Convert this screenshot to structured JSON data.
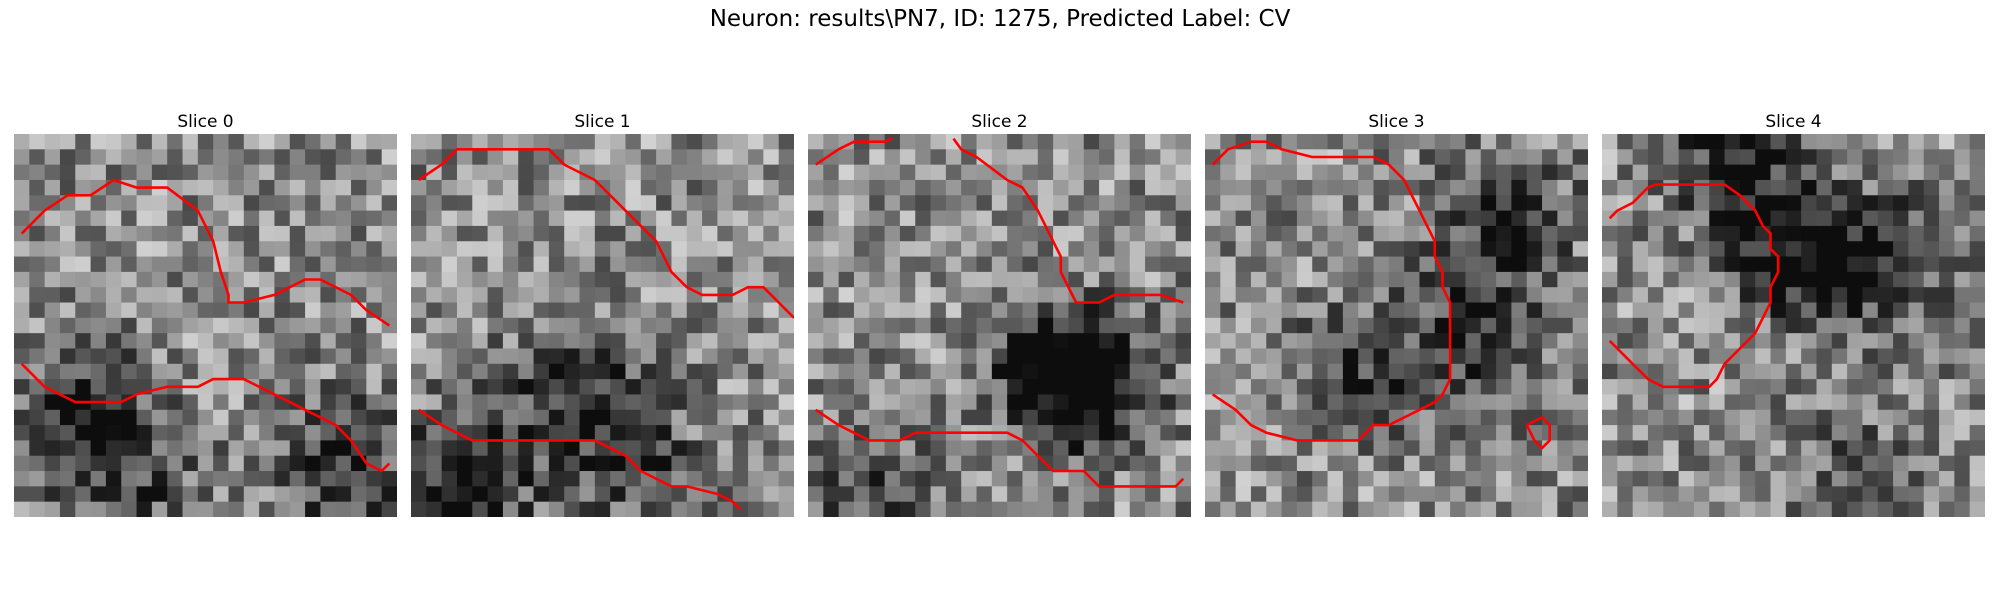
{
  "figure": {
    "title": "Neuron: results\\PN7, ID: 1275, Predicted Label: CV"
  },
  "grid_size": 25,
  "contour_color": "#ff0000",
  "slices": [
    {
      "title": "Slice 0",
      "darkness": [
        [
          4,
          18,
          -5
        ],
        [
          21,
          21,
          -4
        ],
        [
          8,
          23,
          -2
        ]
      ],
      "contours": [
        [
          [
            0.5,
            6.5
          ],
          [
            2,
            5
          ],
          [
            3.5,
            4
          ],
          [
            5,
            4
          ],
          [
            6.5,
            3
          ],
          [
            8,
            3.5
          ],
          [
            10,
            3.5
          ],
          [
            12,
            5
          ],
          [
            13,
            7
          ],
          [
            13.5,
            9
          ],
          [
            14,
            10.5
          ],
          [
            14,
            11
          ],
          [
            15,
            11
          ],
          [
            17,
            10.5
          ],
          [
            18,
            10
          ],
          [
            19,
            9.5
          ],
          [
            20,
            9.5
          ],
          [
            22,
            10.5
          ],
          [
            23,
            11.5
          ],
          [
            24.5,
            12.5
          ]
        ],
        [
          [
            0.5,
            15
          ],
          [
            2,
            16.5
          ],
          [
            4,
            17.5
          ],
          [
            7,
            17.5
          ],
          [
            8,
            17
          ],
          [
            10,
            16.5
          ],
          [
            12,
            16.5
          ],
          [
            13,
            16
          ],
          [
            15,
            16
          ],
          [
            17,
            17
          ],
          [
            19,
            18
          ],
          [
            20,
            18.5
          ],
          [
            21,
            19
          ],
          [
            22,
            20
          ],
          [
            23,
            21.5
          ],
          [
            24,
            22
          ],
          [
            24.5,
            21.5
          ]
        ]
      ]
    },
    {
      "title": "Slice 1",
      "darkness": [
        [
          10,
          16,
          -4
        ],
        [
          3,
          22,
          -5
        ],
        [
          14,
          21,
          -3
        ]
      ],
      "contours": [
        [
          [
            0.5,
            3
          ],
          [
            2,
            2
          ],
          [
            3,
            1
          ],
          [
            5,
            1
          ],
          [
            7,
            1
          ],
          [
            9,
            1
          ],
          [
            10,
            2
          ],
          [
            12,
            3
          ],
          [
            13,
            4
          ],
          [
            15,
            6
          ],
          [
            16,
            7
          ],
          [
            16.5,
            8
          ],
          [
            17,
            9
          ],
          [
            18,
            10
          ],
          [
            19,
            10.5
          ],
          [
            20,
            10.5
          ],
          [
            21,
            10.5
          ],
          [
            22,
            10
          ],
          [
            23,
            10
          ],
          [
            24,
            11
          ],
          [
            25,
            12
          ]
        ],
        [
          [
            0.5,
            18
          ],
          [
            2,
            19
          ],
          [
            4,
            20
          ],
          [
            6,
            20
          ],
          [
            8,
            20
          ],
          [
            10,
            20
          ],
          [
            12,
            20
          ],
          [
            13,
            20.5
          ],
          [
            14,
            21
          ],
          [
            15,
            22
          ],
          [
            17,
            23
          ],
          [
            18,
            23
          ],
          [
            20,
            23.5
          ],
          [
            21,
            24
          ],
          [
            21.5,
            24.5
          ]
        ]
      ]
    },
    {
      "title": "Slice 2",
      "darkness": [
        [
          16,
          15,
          -5
        ],
        [
          18,
          16,
          -4
        ],
        [
          4,
          23,
          -3
        ]
      ],
      "contours": [
        [
          [
            0.5,
            2
          ],
          [
            2,
            1
          ],
          [
            3,
            0.5
          ],
          [
            5,
            0.5
          ],
          [
            5.5,
            0.3
          ]
        ],
        [
          [
            9.5,
            0.3
          ],
          [
            10,
            1
          ],
          [
            11,
            1.5
          ],
          [
            13,
            3
          ],
          [
            14,
            3.5
          ],
          [
            15,
            5
          ],
          [
            15.5,
            6
          ],
          [
            16,
            7
          ],
          [
            16.5,
            8
          ],
          [
            16.5,
            9
          ],
          [
            17,
            10
          ],
          [
            17.5,
            11
          ],
          [
            18,
            11
          ],
          [
            19,
            11
          ],
          [
            20,
            10.5
          ],
          [
            21,
            10.5
          ],
          [
            23,
            10.5
          ],
          [
            24.5,
            11
          ]
        ],
        [
          [
            0.5,
            18
          ],
          [
            2,
            19
          ],
          [
            4,
            20
          ],
          [
            6,
            20
          ],
          [
            7,
            19.5
          ],
          [
            9,
            19.5
          ],
          [
            11,
            19.5
          ],
          [
            13,
            19.5
          ],
          [
            14,
            20
          ],
          [
            15,
            21
          ],
          [
            16,
            22
          ],
          [
            17,
            22
          ],
          [
            18,
            22
          ],
          [
            19,
            23
          ],
          [
            20,
            23
          ],
          [
            22,
            23
          ],
          [
            24,
            23
          ],
          [
            24.5,
            22.5
          ]
        ]
      ]
    },
    {
      "title": "Slice 3",
      "darkness": [
        [
          19,
          5,
          -4
        ],
        [
          17,
          13,
          -4
        ],
        [
          9,
          15,
          -3
        ]
      ],
      "contours": [
        [
          [
            0.5,
            2
          ],
          [
            1.5,
            1
          ],
          [
            3,
            0.5
          ],
          [
            4,
            0.5
          ],
          [
            5,
            1
          ],
          [
            7,
            1.5
          ],
          [
            9,
            1.5
          ],
          [
            10,
            1.5
          ],
          [
            11,
            1.5
          ],
          [
            12,
            2
          ],
          [
            13,
            3
          ],
          [
            13.5,
            4
          ],
          [
            14,
            5
          ],
          [
            14.5,
            6
          ],
          [
            15,
            7
          ],
          [
            15,
            8
          ],
          [
            15.5,
            9
          ],
          [
            15.5,
            10
          ],
          [
            16,
            11
          ],
          [
            16,
            12
          ],
          [
            16,
            14
          ],
          [
            16,
            15
          ],
          [
            16,
            16
          ],
          [
            15.5,
            17
          ],
          [
            15,
            17.5
          ],
          [
            14,
            18
          ],
          [
            13,
            18.5
          ],
          [
            12,
            19
          ],
          [
            11,
            19
          ],
          [
            10,
            20
          ],
          [
            9,
            20
          ],
          [
            8,
            20
          ],
          [
            7,
            20
          ],
          [
            6,
            20
          ],
          [
            4,
            19.5
          ],
          [
            3,
            19
          ],
          [
            2,
            18
          ],
          [
            0.5,
            17
          ]
        ],
        [
          [
            21,
            19
          ],
          [
            22,
            18.5
          ],
          [
            22.5,
            19
          ],
          [
            22.5,
            20
          ],
          [
            22,
            20.5
          ],
          [
            21.5,
            20
          ],
          [
            21,
            19
          ]
        ]
      ]
    },
    {
      "title": "Slice 4",
      "darkness": [
        [
          8,
          1,
          -4
        ],
        [
          12,
          7,
          -5
        ],
        [
          18,
          8,
          -4
        ],
        [
          16,
          22,
          -2
        ]
      ],
      "contours": [
        [
          [
            0.5,
            5.5
          ],
          [
            1,
            5
          ],
          [
            2,
            4.5
          ],
          [
            3,
            3.5
          ],
          [
            3.5,
            3.3
          ],
          [
            5,
            3.3
          ],
          [
            7,
            3.3
          ],
          [
            8,
            3.3
          ],
          [
            9,
            4
          ],
          [
            10,
            5
          ],
          [
            10.5,
            6
          ],
          [
            11,
            6.5
          ],
          [
            11,
            7.5
          ],
          [
            11.5,
            8
          ],
          [
            11.5,
            9
          ],
          [
            11,
            10
          ],
          [
            11,
            11
          ],
          [
            10.5,
            12
          ],
          [
            10,
            13
          ],
          [
            9,
            14
          ],
          [
            8,
            15
          ],
          [
            7.5,
            16
          ],
          [
            7,
            16.5
          ],
          [
            6,
            16.5
          ],
          [
            5,
            16.5
          ],
          [
            4,
            16.5
          ],
          [
            3,
            16
          ],
          [
            2,
            15
          ],
          [
            1,
            14
          ],
          [
            0.5,
            13.5
          ]
        ]
      ]
    }
  ]
}
